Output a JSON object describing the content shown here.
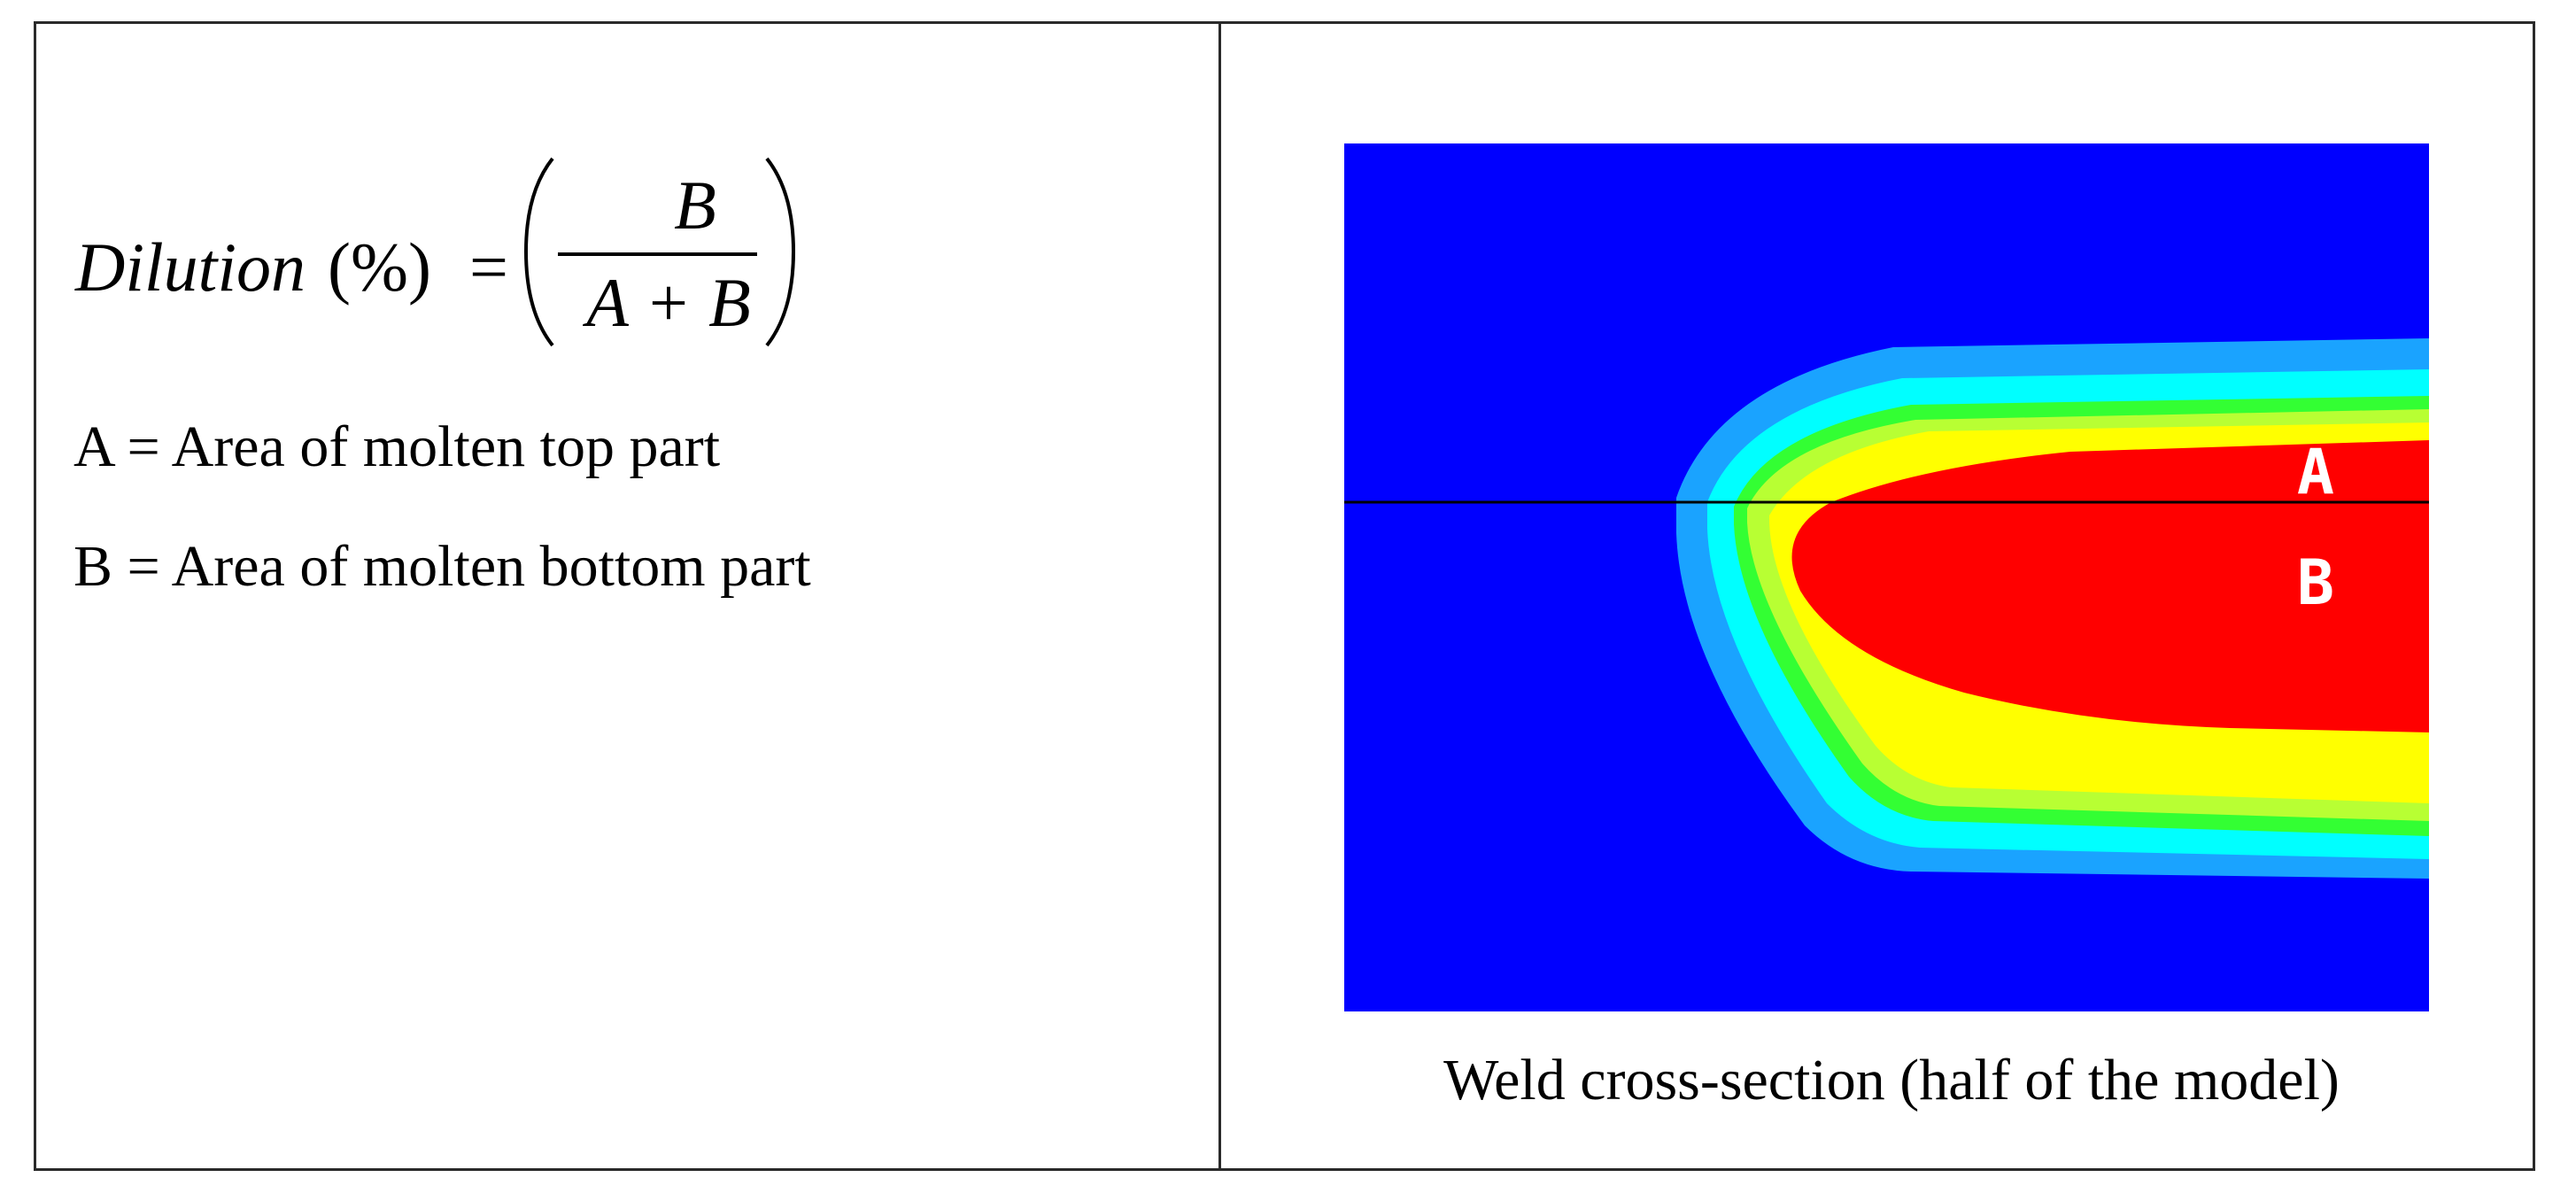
{
  "formula": {
    "word": "Dilution",
    "unit": "(%)",
    "equals": "=",
    "numerator": "B",
    "denominator": "A + B"
  },
  "definitions": {
    "a": "A = Area of molten top part",
    "b": "B = Area of molten bottom part"
  },
  "weld": {
    "label_top": "A",
    "label_bottom": "B",
    "caption": "Weld cross-section (half of the model)",
    "colors": {
      "background": "#0000ff",
      "band1": "#1aa3ff",
      "band2": "#00ffff",
      "band3": "#33ff33",
      "band4": "#b8ff33",
      "band5": "#ffff00",
      "core": "#ff0000",
      "line": "#000000"
    }
  }
}
